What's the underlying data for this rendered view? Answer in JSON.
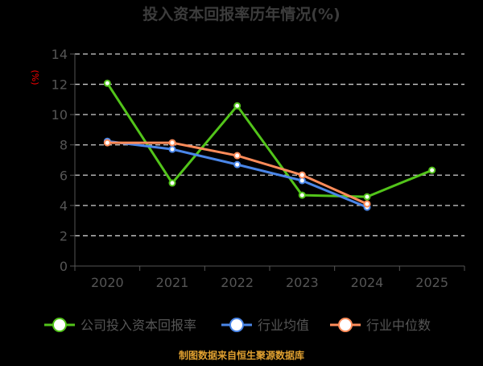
{
  "chart_data": {
    "type": "line",
    "title": "投入资本回报率历年情况(%)",
    "ylabel": "(%)",
    "xlabel": "",
    "categories": [
      "2020",
      "2021",
      "2022",
      "2023",
      "2024",
      "2025"
    ],
    "ylim": [
      0,
      14
    ],
    "yticks": [
      0,
      2,
      4,
      6,
      8,
      10,
      12,
      14
    ],
    "grid": true,
    "legend_position": "bottom",
    "series": [
      {
        "name": "公司投入资本回报率",
        "color": "#52c41a",
        "values": [
          12.07,
          5.48,
          10.58,
          4.68,
          4.57,
          6.33
        ]
      },
      {
        "name": "行业均值",
        "color": "#4a86e8",
        "values": [
          8.24,
          7.71,
          6.7,
          5.64,
          3.88,
          null
        ]
      },
      {
        "name": "行业中位数",
        "color": "#ff8c5a",
        "values": [
          8.14,
          8.14,
          7.29,
          6.01,
          4.1,
          null
        ]
      }
    ]
  },
  "footer": "制图数据来自恒生聚源数据库",
  "colors": {
    "background": "#000000",
    "title": "#3c3c3c",
    "axis_text": "#555555",
    "ylabel": "#ff0000",
    "footer": "#e0a030"
  }
}
